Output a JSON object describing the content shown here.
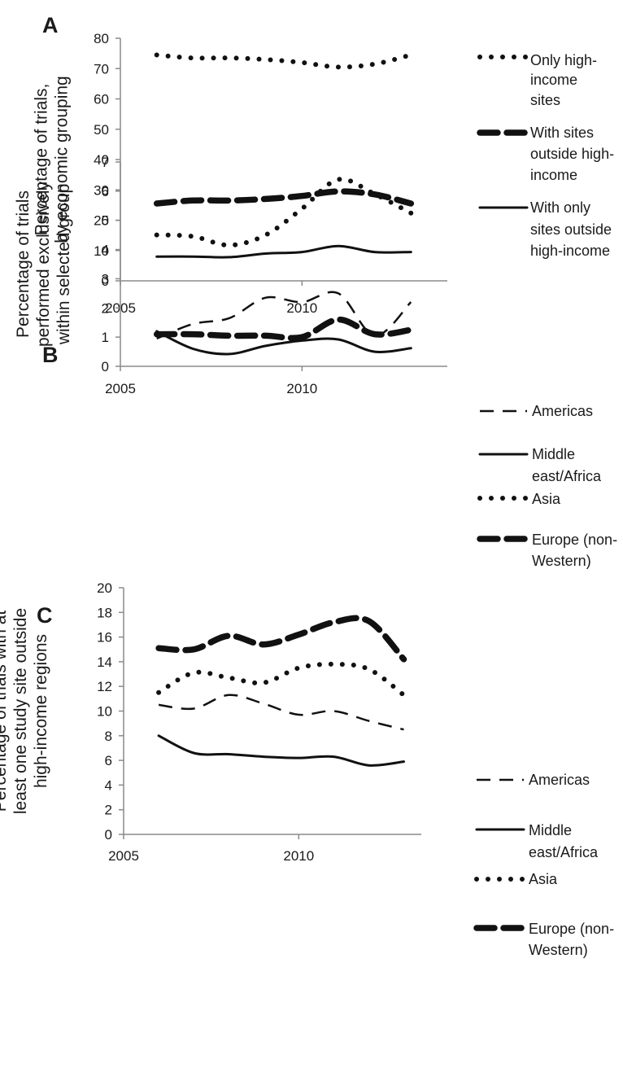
{
  "chart_data": [
    {
      "panel": "A",
      "type": "line",
      "ylabel": [
        "Percentage of trials,",
        "by economic grouping"
      ],
      "ylim": [
        0,
        80
      ],
      "yticks": [
        0,
        10,
        20,
        30,
        40,
        50,
        60,
        70,
        80
      ],
      "xlim": [
        2005,
        2014
      ],
      "xticks": [
        2005,
        2010
      ],
      "x": [
        2006,
        2007,
        2008,
        2009,
        2010,
        2011,
        2012,
        2013
      ],
      "series": [
        {
          "name": [
            "Only high-",
            "income",
            "sites"
          ],
          "style": "dotted",
          "values": [
            74.5,
            73.5,
            73.5,
            73,
            72,
            70.5,
            71.5,
            74.5
          ]
        },
        {
          "name": [
            "With sites",
            "outside high-",
            "income"
          ],
          "style": "dashed-heavy",
          "values": [
            25.5,
            26.5,
            26.5,
            27,
            28,
            29.5,
            28.5,
            25.5
          ]
        },
        {
          "name": [
            "With only",
            "sites outside",
            "high-income"
          ],
          "style": "solid",
          "values": [
            8,
            8,
            7.8,
            9,
            9.5,
            11.5,
            9.5,
            9.5
          ]
        }
      ],
      "legend": "right",
      "grid": false
    },
    {
      "panel": "B",
      "type": "line",
      "ylabel": [
        "Percentage of trials",
        "performed exclusively",
        "within selected group"
      ],
      "ylim": [
        0,
        7
      ],
      "yticks": [
        0,
        1,
        2,
        3,
        4,
        5,
        6,
        7
      ],
      "xlim": [
        2005,
        2014
      ],
      "xticks": [
        2005,
        2010
      ],
      "x": [
        2006,
        2007,
        2008,
        2009,
        2010,
        2011,
        2012,
        2013
      ],
      "series": [
        {
          "name": [
            "Americas"
          ],
          "style": "dashed",
          "values": [
            0.95,
            1.45,
            1.65,
            2.35,
            2.2,
            2.5,
            1.05,
            2.2
          ]
        },
        {
          "name": [
            "Middle",
            "east/Africa"
          ],
          "style": "solid",
          "values": [
            1.2,
            0.6,
            0.42,
            0.7,
            0.88,
            0.92,
            0.5,
            0.62
          ]
        },
        {
          "name": [
            "Asia"
          ],
          "style": "dotted",
          "values": [
            4.5,
            4.45,
            4.15,
            4.5,
            5.4,
            6.4,
            5.9,
            5.25
          ]
        },
        {
          "name": [
            "Europe (non-",
            "Western)"
          ],
          "style": "dashed-heavy",
          "values": [
            1.1,
            1.1,
            1.05,
            1.05,
            1.0,
            1.6,
            1.1,
            1.25
          ]
        }
      ],
      "legend": "right",
      "grid": false
    },
    {
      "panel": "C",
      "type": "line",
      "ylabel": [
        "Percentage of trials with at",
        "least one study site outside",
        "high-income regions"
      ],
      "ylim": [
        0,
        20
      ],
      "yticks": [
        0,
        2,
        4,
        6,
        8,
        10,
        12,
        14,
        16,
        18,
        20
      ],
      "xlim": [
        2005,
        2013.5
      ],
      "xticks": [
        2005,
        2010
      ],
      "x": [
        2006,
        2007,
        2008,
        2009,
        2010,
        2011,
        2012,
        2013
      ],
      "series": [
        {
          "name": [
            "Americas"
          ],
          "style": "dashed",
          "values": [
            10.5,
            10.2,
            11.3,
            10.6,
            9.7,
            10,
            9.2,
            8.5
          ]
        },
        {
          "name": [
            "Middle",
            "east/Africa"
          ],
          "style": "solid",
          "values": [
            8,
            6.6,
            6.5,
            6.3,
            6.2,
            6.3,
            5.6,
            5.9
          ]
        },
        {
          "name": [
            "Asia"
          ],
          "style": "dotted",
          "values": [
            11.5,
            13.1,
            12.7,
            12.3,
            13.5,
            13.8,
            13.4,
            11.3
          ]
        },
        {
          "name": [
            "Europe (non-",
            "Western)"
          ],
          "style": "dashed-heavy",
          "values": [
            15.1,
            15.0,
            16.1,
            15.4,
            16.2,
            17.2,
            17.3,
            14.2
          ]
        }
      ],
      "legend": "right",
      "grid": false
    }
  ]
}
